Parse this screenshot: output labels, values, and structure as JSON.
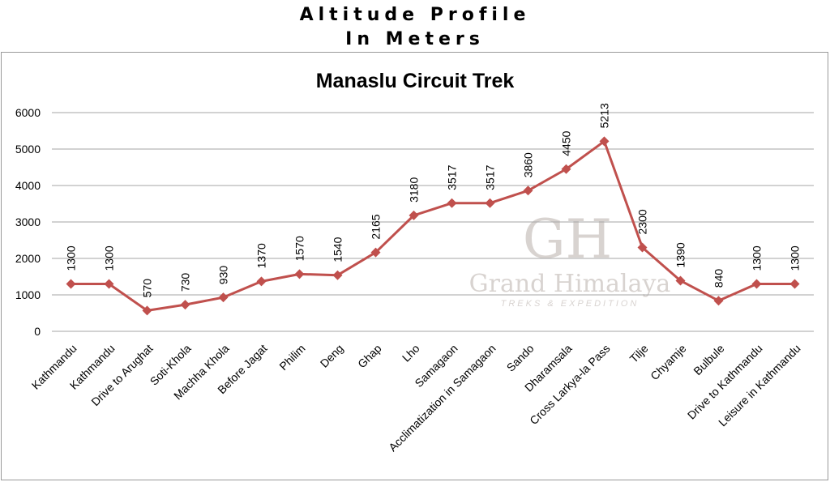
{
  "header": {
    "line1": "Altitude Profile",
    "line2": "In Meters"
  },
  "watermark": {
    "monogram": "GH",
    "name": "Grand Himalaya",
    "tagline": "TREKS & EXPEDITION"
  },
  "colors": {
    "series": "#c0504d",
    "grid": "#a6a6a6",
    "text": "#000000",
    "watermark": "#b9b0ab"
  },
  "chart_data": {
    "type": "line",
    "title": "Manaslu Circuit Trek",
    "xlabel": "",
    "ylabel": "",
    "ylim": [
      0,
      6000
    ],
    "yticks": [
      0,
      1000,
      2000,
      3000,
      4000,
      5000,
      6000
    ],
    "grid": true,
    "legend": "none",
    "marker": "diamond",
    "categories": [
      "Kathmandu",
      "Kathmandu",
      "Drive to Arughat",
      "Soti-Khola",
      "Machha Khola",
      "Before Jagat",
      "Philim",
      "Deng",
      "Ghap",
      "Lho",
      "Samagaon",
      "Acclimatization in Samagaon",
      "Sando",
      "Dharamsala",
      "Cross Larkya-la Pass",
      "Tilje",
      "Chyamje",
      "Bulbule",
      "Drive to Kathmandu",
      "Leisure in Kathmandu"
    ],
    "series": [
      {
        "values": [
          1300,
          1300,
          570,
          730,
          930,
          1370,
          1570,
          1540,
          2165,
          3180,
          3517,
          3517,
          3860,
          4450,
          5213,
          2300,
          1390,
          840,
          1300,
          1300
        ],
        "data_labels": [
          "1300",
          "1300",
          "570",
          "730",
          "930",
          "1370",
          "1570",
          "1540",
          "2165",
          "3180",
          "3517",
          "3517",
          "3860",
          "4450",
          "5213",
          "2300",
          "1390",
          "840",
          "1300",
          "1300"
        ]
      }
    ]
  }
}
